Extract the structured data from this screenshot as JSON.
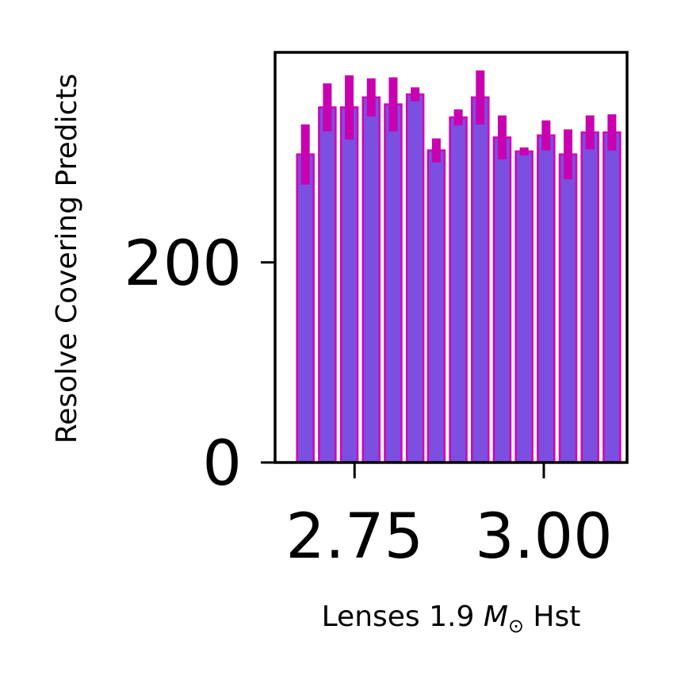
{
  "chart_data": {
    "type": "bar",
    "title": "",
    "xlabel": "Lenses 1.9 M☉  Hst",
    "xlabel_parts": {
      "prefix": "Lenses 1.9 ",
      "symbol": "M",
      "subscript": "⊙",
      "suffix": " Hst"
    },
    "ylabel": "Resolve Covering Predicts",
    "x_ticks": [
      2.75,
      3.0
    ],
    "x_tick_labels": [
      "2.75",
      "3.00"
    ],
    "y_ticks": [
      0,
      200
    ],
    "y_tick_labels": [
      "0",
      "200"
    ],
    "xlim": [
      2.645,
      3.11
    ],
    "ylim": [
      0,
      410
    ],
    "bar_width": 0.022,
    "grid": false,
    "legend": "none",
    "x": [
      2.685,
      2.714,
      2.743,
      2.772,
      2.801,
      2.83,
      2.858,
      2.887,
      2.916,
      2.945,
      2.974,
      3.003,
      3.032,
      3.061,
      3.09
    ],
    "values": [
      308,
      355,
      355,
      365,
      358,
      368,
      312,
      345,
      365,
      325,
      311,
      327,
      308,
      330,
      330
    ],
    "errors": [
      30,
      24,
      32,
      19,
      27,
      7,
      12,
      8,
      27,
      22,
      4,
      15,
      25,
      17,
      18
    ],
    "colors": {
      "bar_fill": "#7b4fe0",
      "bar_edge": "#d600b4",
      "errorbar": "#c800b0",
      "axes": "#000000"
    }
  }
}
